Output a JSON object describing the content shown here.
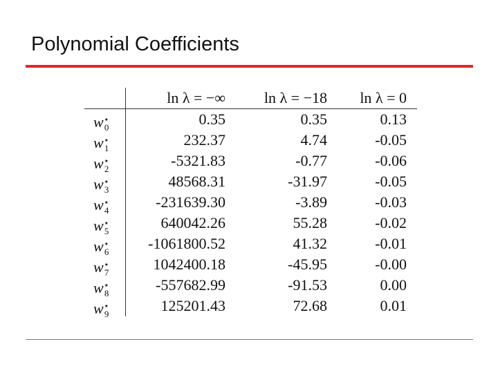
{
  "title": "Polynomial Coefficients",
  "table": {
    "header": [
      "ln λ = −∞",
      "ln λ = −18",
      "ln λ = 0"
    ],
    "rows": [
      {
        "label": {
          "symbol": "w",
          "superscript": "⋆",
          "subscript": "0"
        },
        "cells": [
          "0.35",
          "0.35",
          "0.13"
        ]
      },
      {
        "label": {
          "symbol": "w",
          "superscript": "⋆",
          "subscript": "1"
        },
        "cells": [
          "232.37",
          "4.74",
          "-0.05"
        ]
      },
      {
        "label": {
          "symbol": "w",
          "superscript": "⋆",
          "subscript": "2"
        },
        "cells": [
          "-5321.83",
          "-0.77",
          "-0.06"
        ]
      },
      {
        "label": {
          "symbol": "w",
          "superscript": "⋆",
          "subscript": "3"
        },
        "cells": [
          "48568.31",
          "-31.97",
          "-0.05"
        ]
      },
      {
        "label": {
          "symbol": "w",
          "superscript": "⋆",
          "subscript": "4"
        },
        "cells": [
          "-231639.30",
          "-3.89",
          "-0.03"
        ]
      },
      {
        "label": {
          "symbol": "w",
          "superscript": "⋆",
          "subscript": "5"
        },
        "cells": [
          "640042.26",
          "55.28",
          "-0.02"
        ]
      },
      {
        "label": {
          "symbol": "w",
          "superscript": "⋆",
          "subscript": "6"
        },
        "cells": [
          "-1061800.52",
          "41.32",
          "-0.01"
        ]
      },
      {
        "label": {
          "symbol": "w",
          "superscript": "⋆",
          "subscript": "7"
        },
        "cells": [
          "1042400.18",
          "-45.95",
          "-0.00"
        ]
      },
      {
        "label": {
          "symbol": "w",
          "superscript": "⋆",
          "subscript": "8"
        },
        "cells": [
          "-557682.99",
          "-91.53",
          "0.00"
        ]
      },
      {
        "label": {
          "symbol": "w",
          "superscript": "⋆",
          "subscript": "9"
        },
        "cells": [
          "125201.43",
          "72.68",
          "0.01"
        ]
      }
    ]
  }
}
